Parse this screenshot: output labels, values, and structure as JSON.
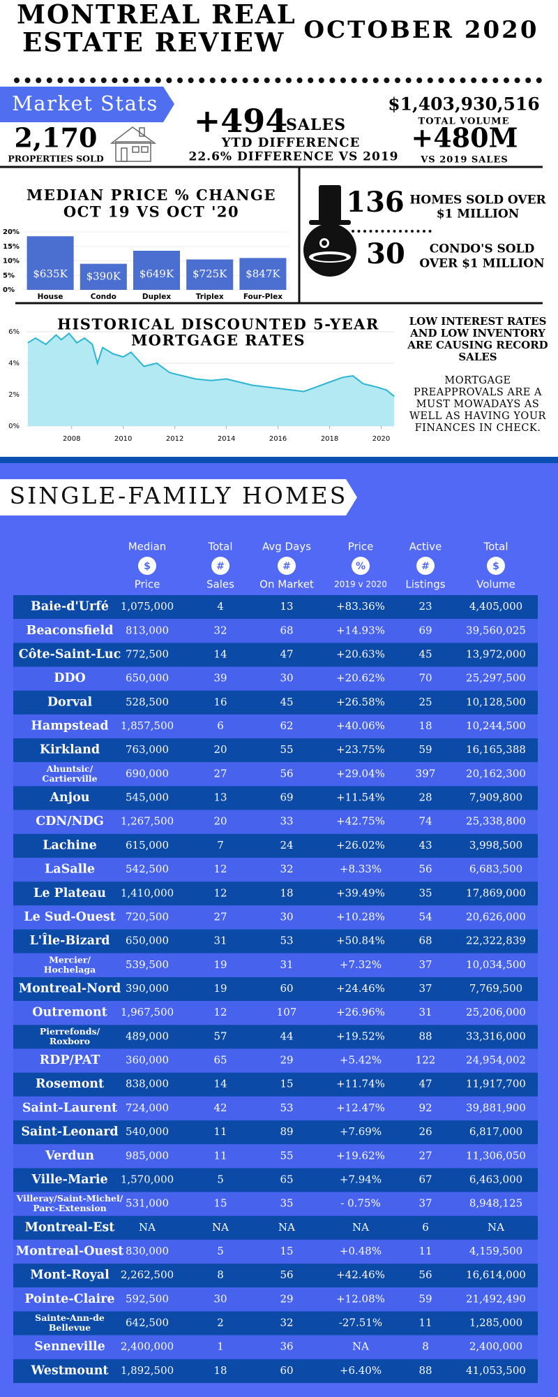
{
  "header": {
    "title_lines": [
      "MONTREAL REAL",
      "ESTATE REVIEW"
    ],
    "date": "OCTOBER 2020"
  },
  "market_stats": {
    "label": "Market Stats",
    "properties_sold": "2,170",
    "properties_sold_label": "PROPERTIES SOLD",
    "sales_change": "+494",
    "sales_label": "SALES",
    "ytd_label": "YTD DIFFERENCE",
    "difference": "22.6% DIFFERENCE VS 2019",
    "total_volume": "$1,403,930,516",
    "total_volume_label": "TOTAL VOLUME",
    "volume_change": "+480M",
    "volume_change_label": "VS 2019 SALES"
  },
  "luxury": {
    "homes_count": "136",
    "homes_label": [
      "HOMES SOLD OVER",
      "$1 MILLION"
    ],
    "condos_count": "30",
    "condos_label": [
      "CONDO'S SOLD",
      "OVER $1 MILLION"
    ]
  },
  "notes": {
    "headline": [
      "LOW INTEREST RATES",
      "AND LOW INVENTORY",
      "ARE CAUSING RECORD",
      "SALES"
    ],
    "body": [
      "MORTGAGE",
      "PREAPPROVALS ARE A",
      "MUST MOWADAYS AS",
      "WELL AS HAVING YOUR",
      "FINANCES IN CHECK."
    ]
  },
  "chart_data": [
    {
      "type": "bar",
      "title_lines": [
        "MEDIAN PRICE % CHANGE",
        "OCT 19 VS OCT '20"
      ],
      "categories": [
        "House",
        "Condo",
        "Duplex",
        "Triplex",
        "Four-Plex"
      ],
      "values": [
        18.5,
        9,
        13.5,
        10.5,
        11
      ],
      "bar_labels": [
        "$635K",
        "$390K",
        "$649K",
        "$725K",
        "$847K"
      ],
      "color": "#4a6fd1",
      "ylim": [
        0,
        20
      ],
      "yticks": [
        {
          "value": 0,
          "label": "0%"
        },
        {
          "value": 5,
          "label": "5%"
        },
        {
          "value": 10,
          "label": "10%"
        },
        {
          "value": 15,
          "label": "15%"
        },
        {
          "value": 20,
          "label": "20%"
        }
      ],
      "grid": true
    },
    {
      "type": "area",
      "title_lines": [
        "HISTORICAL DISCOUNTED 5-YEAR",
        "MORTGAGE RATES"
      ],
      "x": [
        2006.3,
        2006.6,
        2007.0,
        2007.4,
        2007.6,
        2007.9,
        2008.2,
        2008.5,
        2008.8,
        2009.0,
        2009.2,
        2009.6,
        2010.0,
        2010.3,
        2010.8,
        2011.3,
        2011.8,
        2012.3,
        2012.8,
        2013.4,
        2014.0,
        2014.5,
        2015.0,
        2015.5,
        2016.0,
        2016.5,
        2017.0,
        2017.5,
        2018.0,
        2018.5,
        2018.9,
        2019.3,
        2019.8,
        2020.2,
        2020.5
      ],
      "values": [
        5.3,
        5.6,
        5.2,
        5.8,
        5.5,
        5.9,
        5.3,
        5.6,
        5.2,
        4.0,
        5.0,
        4.6,
        4.4,
        4.7,
        3.8,
        4.0,
        3.4,
        3.2,
        3.0,
        2.9,
        3.0,
        2.8,
        2.6,
        2.5,
        2.4,
        2.3,
        2.2,
        2.5,
        2.8,
        3.1,
        3.2,
        2.7,
        2.5,
        2.3,
        1.9
      ],
      "color": "#2bb5d3",
      "fill": "#b3e9f2",
      "xlim": [
        2006.25,
        2020.5
      ],
      "xticks": [
        2008,
        2010,
        2012,
        2014,
        2016,
        2018,
        2020
      ],
      "ylim": [
        0,
        6
      ],
      "yticks": [
        {
          "value": 0,
          "label": "0%"
        },
        {
          "value": 2,
          "label": "2%"
        },
        {
          "value": 4,
          "label": "4%"
        },
        {
          "value": 6,
          "label": "6%"
        }
      ],
      "grid": true
    }
  ],
  "table": {
    "section_title": "SINGLE-FAMILY HOMES",
    "columns": [
      {
        "top": "Median",
        "icon": "$",
        "bottom": "Price"
      },
      {
        "top": "Total",
        "icon": "#",
        "bottom": "Sales"
      },
      {
        "top": "Avg Days",
        "icon": "#",
        "bottom": "On Market"
      },
      {
        "top": "Price",
        "icon": "%",
        "bottom": "2019 v 2020"
      },
      {
        "top": "Active",
        "icon": "#",
        "bottom": "Listings"
      },
      {
        "top": "Total",
        "icon": "$",
        "bottom": "Volume"
      }
    ],
    "rows": [
      [
        [
          "Baie-d'Urfé"
        ],
        "1,075,000",
        "4",
        "13",
        "+83.36%",
        "23",
        "4,405,000"
      ],
      [
        [
          "Beaconsfield"
        ],
        "813,000",
        "32",
        "68",
        "+14.93%",
        "69",
        "39,560,025"
      ],
      [
        [
          "Côte-Saint-Luc"
        ],
        "772,500",
        "14",
        "47",
        "+20.63%",
        "45",
        "13,972,000"
      ],
      [
        [
          "DDO"
        ],
        "650,000",
        "39",
        "30",
        "+20.62%",
        "70",
        "25,297,500"
      ],
      [
        [
          "Dorval"
        ],
        "528,500",
        "16",
        "45",
        "+26.58%",
        "25",
        "10,128,500"
      ],
      [
        [
          "Hampstead"
        ],
        "1,857,500",
        "6",
        "62",
        "+40.06%",
        "18",
        "10,244,500"
      ],
      [
        [
          "Kirkland"
        ],
        "763,000",
        "20",
        "55",
        "+23.75%",
        "59",
        "16,165,388"
      ],
      [
        [
          "Ahuntsic/",
          "Cartierville"
        ],
        "690,000",
        "27",
        "56",
        "+29.04%",
        "397",
        "20,162,300"
      ],
      [
        [
          "Anjou"
        ],
        "545,000",
        "13",
        "69",
        "+11.54%",
        "28",
        "7,909,800"
      ],
      [
        [
          "CDN/NDG"
        ],
        "1,267,500",
        "20",
        "33",
        "+42.75%",
        "74",
        "25,338,800"
      ],
      [
        [
          "Lachine"
        ],
        "615,000",
        "7",
        "24",
        "+26.02%",
        "43",
        "3,998,500"
      ],
      [
        [
          "LaSalle"
        ],
        "542,500",
        "12",
        "32",
        "+8.33%",
        "56",
        "6,683,500"
      ],
      [
        [
          "Le Plateau"
        ],
        "1,410,000",
        "12",
        "18",
        "+39.49%",
        "35",
        "17,869,000"
      ],
      [
        [
          "Le Sud-Ouest"
        ],
        "720,500",
        "27",
        "30",
        "+10.28%",
        "54",
        "20,626,000"
      ],
      [
        [
          "L'Île-Bizard"
        ],
        "650,000",
        "31",
        "53",
        "+50.84%",
        "68",
        "22,322,839"
      ],
      [
        [
          "Mercier/",
          "Hochelaga"
        ],
        "539,500",
        "19",
        "31",
        "+7.32%",
        "37",
        "10,034,500"
      ],
      [
        [
          "Montreal-Nord"
        ],
        "390,000",
        "19",
        "60",
        "+24.46%",
        "37",
        "7,769,500"
      ],
      [
        [
          "Outremont"
        ],
        "1,967,500",
        "12",
        "107",
        "+26.96%",
        "31",
        "25,206,000"
      ],
      [
        [
          "Pierrefonds/",
          "Roxboro"
        ],
        "489,000",
        "57",
        "44",
        "+19.52%",
        "88",
        "33,316,000"
      ],
      [
        [
          "RDP/PAT"
        ],
        "360,000",
        "65",
        "29",
        "+5.42%",
        "122",
        "24,954,002"
      ],
      [
        [
          "Rosemont"
        ],
        "838,000",
        "14",
        "15",
        "+11.74%",
        "47",
        "11,917,700"
      ],
      [
        [
          "Saint-Laurent"
        ],
        "724,000",
        "42",
        "53",
        "+12.47%",
        "92",
        "39,881,900"
      ],
      [
        [
          "Saint-Leonard"
        ],
        "540,000",
        "11",
        "89",
        "+7.69%",
        "26",
        "6,817,000"
      ],
      [
        [
          "Verdun"
        ],
        "985,000",
        "11",
        "55",
        "+19.62%",
        "27",
        "11,306,050"
      ],
      [
        [
          "Ville-Marie"
        ],
        "1,570,000",
        "5",
        "65",
        "+7.94%",
        "67",
        "6,463,000"
      ],
      [
        [
          "Villeray/Saint-Michel/",
          "Parc-Extension"
        ],
        "531,000",
        "15",
        "35",
        "- 0.75%",
        "37",
        "8,948,125"
      ],
      [
        [
          "Montreal-Est"
        ],
        "NA",
        "NA",
        "NA",
        "NA",
        "6",
        "NA"
      ],
      [
        [
          "Montreal-Ouest"
        ],
        "830,000",
        "5",
        "15",
        "+0.48%",
        "11",
        "4,159,500"
      ],
      [
        [
          "Mont-Royal"
        ],
        "2,262,500",
        "8",
        "56",
        "+42.46%",
        "56",
        "16,614,000"
      ],
      [
        [
          "Pointe-Claire"
        ],
        "592,500",
        "30",
        "29",
        "+12.08%",
        "59",
        "21,492,490"
      ],
      [
        [
          "Sainte-Ann-de",
          "Bellevue"
        ],
        "642,500",
        "2",
        "32",
        "-27.51%",
        "11",
        "1,285,000"
      ],
      [
        [
          "Senneville"
        ],
        "2,400,000",
        "1",
        "36",
        "NA",
        "8",
        "2,400,000"
      ],
      [
        [
          "Westmount"
        ],
        "1,892,500",
        "18",
        "60",
        "+6.40%",
        "88",
        "41,053,500"
      ]
    ]
  }
}
